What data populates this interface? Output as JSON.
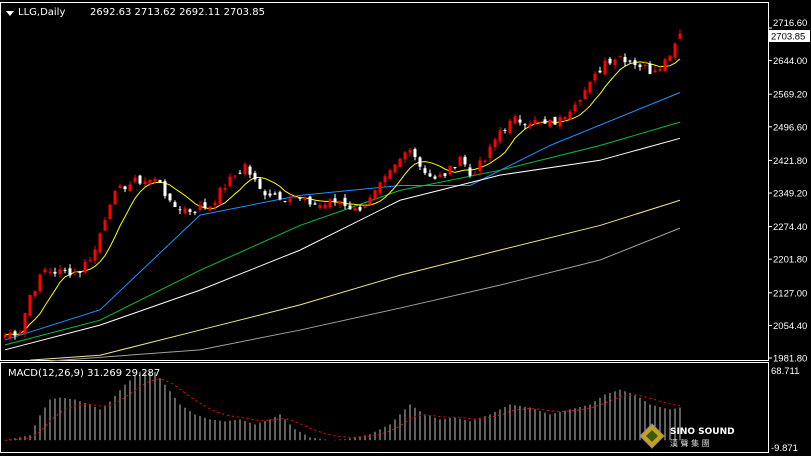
{
  "header": {
    "symbol": "LLG,Daily",
    "ohlc": "2692.63 2713.62 2692.11 2703.85"
  },
  "macd_label": "MACD(12,26,9) 31.269 29.287",
  "watermark": {
    "brand": "SINO SOUND",
    "sub": "漢 聲 集 團"
  },
  "colors": {
    "up": "#ff0000",
    "down": "#ffffff",
    "ma_short": "#ffff00",
    "ma_blue": "#1e90ff",
    "ma_green": "#00c040",
    "ma_white": "#ffffff",
    "ma_long_yellow": "#f0e68c",
    "ma_gray": "#a0a0a0",
    "signal": "#ff0000",
    "hist": "#c0c0c0"
  },
  "chart_data": {
    "type": "candlestick",
    "title": "LLG,Daily",
    "last_price": "2703.85",
    "price_axis": {
      "range": [
        1981.8,
        2716.6
      ],
      "ticks": [
        "2716.60",
        "2644.00",
        "2569.20",
        "2496.60",
        "2421.80",
        "2349.20",
        "2274.40",
        "2201.80",
        "2127.00",
        "2054.40",
        "1981.80"
      ]
    },
    "close_waypoints": [
      [
        0,
        2033
      ],
      [
        3,
        2044
      ],
      [
        5,
        2122
      ],
      [
        8,
        2177
      ],
      [
        11,
        2173
      ],
      [
        15,
        2177
      ],
      [
        18,
        2222
      ],
      [
        21,
        2333
      ],
      [
        24,
        2366
      ],
      [
        27,
        2377
      ],
      [
        31,
        2377
      ],
      [
        33,
        2322
      ],
      [
        37,
        2311
      ],
      [
        41,
        2322
      ],
      [
        44,
        2366
      ],
      [
        48,
        2411
      ],
      [
        51,
        2355
      ],
      [
        55,
        2344
      ],
      [
        59,
        2333
      ],
      [
        63,
        2322
      ],
      [
        67,
        2333
      ],
      [
        70,
        2311
      ],
      [
        73,
        2333
      ],
      [
        76,
        2377
      ],
      [
        79,
        2422
      ],
      [
        81,
        2455
      ],
      [
        83,
        2411
      ],
      [
        86,
        2377
      ],
      [
        89,
        2400
      ],
      [
        91,
        2433
      ],
      [
        93,
        2389
      ],
      [
        96,
        2422
      ],
      [
        99,
        2489
      ],
      [
        102,
        2511
      ],
      [
        105,
        2511
      ],
      [
        108,
        2500
      ],
      [
        111,
        2511
      ],
      [
        114,
        2555
      ],
      [
        117,
        2589
      ],
      [
        120,
        2644
      ],
      [
        123,
        2655
      ],
      [
        126,
        2640
      ],
      [
        129,
        2622
      ],
      [
        132,
        2644
      ],
      [
        135,
        2703.85
      ]
    ],
    "moving_averages": [
      {
        "name": "MA blue",
        "points": [
          [
            0,
            2022
          ],
          [
            19,
            2089
          ],
          [
            39,
            2300
          ],
          [
            59,
            2344
          ],
          [
            79,
            2366
          ],
          [
            93,
            2366
          ],
          [
            109,
            2455
          ],
          [
            135,
            2573
          ]
        ]
      },
      {
        "name": "MA green",
        "points": [
          [
            0,
            2011
          ],
          [
            19,
            2066
          ],
          [
            39,
            2177
          ],
          [
            59,
            2277
          ],
          [
            79,
            2355
          ],
          [
            99,
            2400
          ],
          [
            119,
            2455
          ],
          [
            135,
            2507
          ]
        ]
      },
      {
        "name": "MA white",
        "points": [
          [
            0,
            2000
          ],
          [
            19,
            2055
          ],
          [
            39,
            2133
          ],
          [
            59,
            2222
          ],
          [
            79,
            2333
          ],
          [
            99,
            2389
          ],
          [
            119,
            2422
          ],
          [
            135,
            2471
          ]
        ]
      },
      {
        "name": "MA long yellow",
        "points": [
          [
            5,
            1977
          ],
          [
            19,
            1988
          ],
          [
            39,
            2044
          ],
          [
            59,
            2100
          ],
          [
            79,
            2166
          ],
          [
            99,
            2222
          ],
          [
            119,
            2277
          ],
          [
            135,
            2333
          ]
        ]
      },
      {
        "name": "MA gray",
        "points": [
          [
            9,
            1975
          ],
          [
            39,
            2000
          ],
          [
            59,
            2044
          ],
          [
            79,
            2093
          ],
          [
            99,
            2144
          ],
          [
            119,
            2200
          ],
          [
            135,
            2271
          ]
        ]
      }
    ],
    "macd": {
      "axis": {
        "max": "68.711",
        "min": "-9.871",
        "range": [
          -9.871,
          68.711
        ]
      },
      "hist_waypoints": [
        [
          0,
          0
        ],
        [
          5,
          5
        ],
        [
          7,
          25
        ],
        [
          9,
          41
        ],
        [
          11,
          43
        ],
        [
          14,
          41
        ],
        [
          17,
          36
        ],
        [
          19,
          31
        ],
        [
          21,
          39
        ],
        [
          24,
          56
        ],
        [
          27,
          69
        ],
        [
          30,
          69
        ],
        [
          32,
          56
        ],
        [
          35,
          36
        ],
        [
          38,
          26
        ],
        [
          41,
          21
        ],
        [
          44,
          19
        ],
        [
          47,
          21
        ],
        [
          50,
          16
        ],
        [
          53,
          21
        ],
        [
          55,
          26
        ],
        [
          58,
          11
        ],
        [
          61,
          3
        ],
        [
          65,
          0
        ],
        [
          68,
          1
        ],
        [
          73,
          6
        ],
        [
          77,
          16
        ],
        [
          81,
          36
        ],
        [
          84,
          26
        ],
        [
          87,
          21
        ],
        [
          90,
          23
        ],
        [
          93,
          19
        ],
        [
          97,
          26
        ],
        [
          101,
          36
        ],
        [
          105,
          33
        ],
        [
          109,
          26
        ],
        [
          113,
          31
        ],
        [
          117,
          36
        ],
        [
          120,
          46
        ],
        [
          123,
          51
        ],
        [
          126,
          46
        ],
        [
          129,
          36
        ],
        [
          133,
          31
        ],
        [
          135,
          33
        ]
      ]
    }
  }
}
